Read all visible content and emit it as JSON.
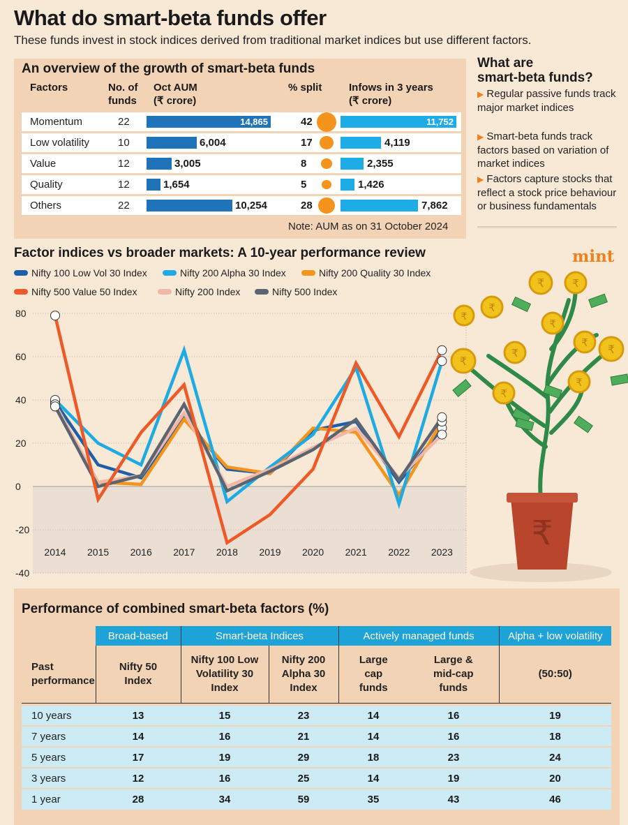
{
  "header": {
    "title": "What do smart-beta funds offer",
    "subtitle": "These funds invest in stock indices derived from traditional market indices but use different factors."
  },
  "overview": {
    "title": "An overview of the growth of smart-beta funds",
    "headers": {
      "factors": "Factors",
      "funds_1": "No. of",
      "funds_2": "funds",
      "aum_1": "Oct AUM",
      "aum_2": "(₹ crore)",
      "split": "% split",
      "inflows_1": "Infows in 3 years",
      "inflows_2": "(₹ crore)"
    },
    "rows": [
      {
        "factor": "Momentum",
        "funds": "22",
        "aum": "14,865",
        "aum_value": 14865,
        "split": "42",
        "split_value": 42,
        "inflows": "11,752",
        "inflows_value": 11752
      },
      {
        "factor": "Low volatility",
        "funds": "10",
        "aum": "6,004",
        "aum_value": 6004,
        "split": "17",
        "split_value": 17,
        "inflows": "4,119",
        "inflows_value": 4119
      },
      {
        "factor": "Value",
        "funds": "12",
        "aum": "3,005",
        "aum_value": 3005,
        "split": "8",
        "split_value": 8,
        "inflows": "2,355",
        "inflows_value": 2355
      },
      {
        "factor": "Quality",
        "funds": "12",
        "aum": "1,654",
        "aum_value": 1654,
        "split": "5",
        "split_value": 5,
        "inflows": "1,426",
        "inflows_value": 1426
      },
      {
        "factor": "Others",
        "funds": "22",
        "aum": "10,254",
        "aum_value": 10254,
        "split": "28",
        "split_value": 28,
        "inflows": "7,862",
        "inflows_value": 7862
      }
    ],
    "note": "Note: AUM as on 31 October 2024",
    "colors": {
      "aum_bar": "#1f73b9",
      "inflow_bar": "#1eace6",
      "split_circle": "#f5941c"
    }
  },
  "sidebar": {
    "title_1": "What are",
    "title_2": "smart-beta funds?",
    "items": [
      "Regular passive funds track major market indices",
      "Smart-beta funds track factors based on variation of market indices",
      "Factors capture stocks that reflect a stock price behaviour or business fundamentals"
    ],
    "arrow_icon": "triangle-right-icon"
  },
  "brand": "mint",
  "chart_data": {
    "type": "line",
    "title": "Factor indices vs broader markets: A 10-year performance review",
    "xlabel": "",
    "ylabel": "",
    "x": [
      "2014",
      "2015",
      "2016",
      "2017",
      "2018",
      "2019",
      "2020",
      "2021",
      "2022",
      "2023"
    ],
    "ylim": [
      -40,
      80
    ],
    "yticks": [
      80,
      60,
      40,
      20,
      0,
      -20,
      -40
    ],
    "legend_position": "top",
    "series": [
      {
        "name": "Nifty 100 Low Vol 30 Index",
        "color": "#1f5fa8",
        "values": [
          39,
          10,
          4,
          32,
          8,
          6,
          26,
          30,
          2,
          27
        ]
      },
      {
        "name": "Nifty 200 Alpha 30 Index",
        "color": "#1eaae3",
        "values": [
          40,
          20,
          10,
          63,
          -7,
          9,
          24,
          55,
          -8,
          58
        ]
      },
      {
        "name": "Nifty 200 Quality 30 Index",
        "color": "#f5941c",
        "values": [
          37,
          2,
          1,
          31,
          9,
          6,
          27,
          25,
          -4,
          30
        ]
      },
      {
        "name": "Nifty 500 Value 50 Index",
        "color": "#ee5a27",
        "values": [
          79,
          -6,
          25,
          47,
          -26,
          -13,
          8,
          57,
          23,
          63
        ]
      },
      {
        "name": "Nifty 200 Index",
        "color": "#f1b8a8",
        "values": [
          38,
          2,
          5,
          34,
          0,
          8,
          18,
          27,
          4,
          24
        ]
      },
      {
        "name": "Nifty 500 Index",
        "color": "#5b6471",
        "values": [
          37,
          0,
          5,
          38,
          -2,
          7,
          17,
          31,
          3,
          32
        ]
      }
    ]
  },
  "performance": {
    "title": "Performance of combined smart-beta factors (%)",
    "groups": [
      "Broad-based",
      "Smart-beta Indices",
      "Actively managed funds",
      "Alpha + low volatility"
    ],
    "row_header": "Past performance",
    "columns": [
      "Nifty 50 Index",
      "Nifty 100 Low Volatility 30 Index",
      "Nifty 200 Alpha 30 Index",
      "Large cap funds",
      "Large & mid-cap funds",
      "(50:50)"
    ],
    "rows": [
      {
        "period": "10 years",
        "values": [
          "13",
          "15",
          "23",
          "14",
          "16",
          "19"
        ]
      },
      {
        "period": "7 years",
        "values": [
          "14",
          "16",
          "21",
          "14",
          "16",
          "18"
        ]
      },
      {
        "period": "5 years",
        "values": [
          "17",
          "19",
          "29",
          "18",
          "23",
          "24"
        ]
      },
      {
        "period": "3 years",
        "values": [
          "12",
          "16",
          "25",
          "14",
          "19",
          "20"
        ]
      },
      {
        "period": "1 year",
        "values": [
          "28",
          "34",
          "59",
          "35",
          "43",
          "46"
        ]
      }
    ]
  }
}
